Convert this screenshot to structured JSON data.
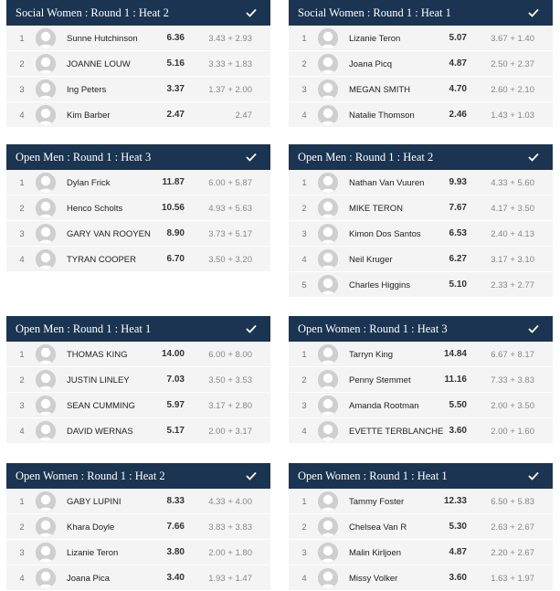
{
  "heats": [
    {
      "title": "Social Women : Round 1 : Heat 2",
      "rows": [
        {
          "place": "1",
          "name": "Sunne Hutchinson",
          "total": "6.36",
          "scores": "3.43 + 2.93"
        },
        {
          "place": "2",
          "name": "JOANNE LOUW",
          "total": "5.16",
          "scores": "3.33 + 1.83"
        },
        {
          "place": "3",
          "name": "Ing Peters",
          "total": "3.37",
          "scores": "1.37 + 2.00"
        },
        {
          "place": "4",
          "name": "Kim Barber",
          "total": "2.47",
          "scores": "2.47"
        }
      ]
    },
    {
      "title": "Social Women : Round 1 : Heat 1",
      "rows": [
        {
          "place": "1",
          "name": "Lizanie Teron",
          "total": "5.07",
          "scores": "3.67 + 1.40"
        },
        {
          "place": "2",
          "name": "Joana Picq",
          "total": "4.87",
          "scores": "2.50 + 2.37"
        },
        {
          "place": "3",
          "name": "MEGAN SMITH",
          "total": "4.70",
          "scores": "2.60 + 2.10"
        },
        {
          "place": "4",
          "name": "Natalie Thomson",
          "total": "2.46",
          "scores": "1.43 + 1.03"
        }
      ]
    },
    {
      "title": "Open Men : Round 1 : Heat 3",
      "rows": [
        {
          "place": "1",
          "name": "Dylan Frick",
          "total": "11.87",
          "scores": "6.00 + 5.87"
        },
        {
          "place": "2",
          "name": "Henco Scholts",
          "total": "10.56",
          "scores": "4.93 + 5.63"
        },
        {
          "place": "3",
          "name": "GARY VAN ROOYEN",
          "total": "8.90",
          "scores": "3.73 + 5.17"
        },
        {
          "place": "4",
          "name": "TYRAN COOPER",
          "total": "6.70",
          "scores": "3.50 + 3.20"
        }
      ]
    },
    {
      "title": "Open Men : Round 1 : Heat 2",
      "rows": [
        {
          "place": "1",
          "name": "Nathan Van Vuuren",
          "total": "9.93",
          "scores": "4.33 + 5.60"
        },
        {
          "place": "2",
          "name": "MIKE TERON",
          "total": "7.67",
          "scores": "4.17 + 3.50"
        },
        {
          "place": "3",
          "name": "Kimon Dos Santos",
          "total": "6.53",
          "scores": "2.40 + 4.13"
        },
        {
          "place": "4",
          "name": "Neil Kruger",
          "total": "6.27",
          "scores": "3.17 + 3.10"
        },
        {
          "place": "5",
          "name": "Charles Higgins",
          "total": "5.10",
          "scores": "2.33 + 2.77"
        }
      ]
    },
    {
      "title": "Open Men : Round 1 : Heat 1",
      "rows": [
        {
          "place": "1",
          "name": "THOMAS KING",
          "total": "14.00",
          "scores": "6.00 + 8.00"
        },
        {
          "place": "2",
          "name": "JUSTIN LINLEY",
          "total": "7.03",
          "scores": "3.50 + 3.53"
        },
        {
          "place": "3",
          "name": "SEAN CUMMING",
          "total": "5.97",
          "scores": "3.17 + 2.80"
        },
        {
          "place": "4",
          "name": "DAVID WERNAS",
          "total": "5.17",
          "scores": "2.00 + 3.17"
        }
      ]
    },
    {
      "title": "Open Women : Round 1 : Heat 3",
      "rows": [
        {
          "place": "1",
          "name": "Tarryn King",
          "total": "14.84",
          "scores": "6.67 + 8.17"
        },
        {
          "place": "2",
          "name": "Penny Stemmet",
          "total": "11.16",
          "scores": "7.33 + 3.83"
        },
        {
          "place": "3",
          "name": "Amanda Rootman",
          "total": "5.50",
          "scores": "2.00 + 3.50"
        },
        {
          "place": "4",
          "name": "EVETTE TERBLANCHE",
          "total": "3.60",
          "scores": "2.00 + 1.60"
        }
      ]
    },
    {
      "title": "Open Women : Round 1 : Heat 2",
      "rows": [
        {
          "place": "1",
          "name": "GABY LUPINI",
          "total": "8.33",
          "scores": "4.33 + 4.00"
        },
        {
          "place": "2",
          "name": "Khara Doyle",
          "total": "7.66",
          "scores": "3.83 + 3.83"
        },
        {
          "place": "3",
          "name": "Lizanie Teron",
          "total": "3.80",
          "scores": "2.00 + 1.80"
        },
        {
          "place": "4",
          "name": "Joana Pica",
          "total": "3.40",
          "scores": "1.93 + 1.47"
        }
      ]
    },
    {
      "title": "Open Women : Round 1 : Heat 1",
      "rows": [
        {
          "place": "1",
          "name": "Tammy Foster",
          "total": "12.33",
          "scores": "6.50 + 5.83"
        },
        {
          "place": "2",
          "name": "Chelsea Van R",
          "total": "5.30",
          "scores": "2.63 + 2.67"
        },
        {
          "place": "3",
          "name": "Malin Kirljoen",
          "total": "4.87",
          "scores": "2.20 + 2.67"
        },
        {
          "place": "4",
          "name": "Missy Volker",
          "total": "3.60",
          "scores": "1.63 + 1.97"
        }
      ]
    }
  ],
  "icons": {
    "header_status": "check-icon",
    "surfer": "avatar-placeholder-icon"
  },
  "colors": {
    "header_bg": "#1a3451",
    "row_bg": "#f4f4f4"
  }
}
